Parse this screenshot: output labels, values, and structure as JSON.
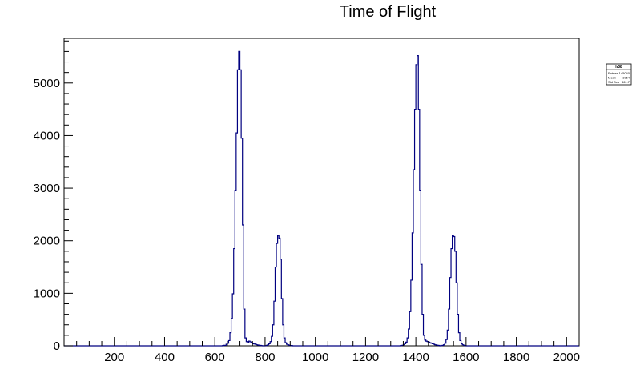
{
  "chart_data": {
    "type": "histogram",
    "title": "Time of Flight",
    "xlabel": "",
    "ylabel": "",
    "xlim": [
      0,
      2050
    ],
    "ylim": [
      0,
      5850
    ],
    "x_ticks": [
      200,
      400,
      600,
      800,
      1000,
      1200,
      1400,
      1600,
      1800,
      2000
    ],
    "y_ticks": [
      0,
      1000,
      2000,
      3000,
      4000,
      5000
    ],
    "line_color": "#000080",
    "grid": false,
    "stats_box": {
      "name": "h38",
      "entries_label": "Entries",
      "entries_value": "145040",
      "mean_label": "Mean",
      "mean_value": "1054",
      "stddev_label": "Std Dev",
      "stddev_value": "361.7"
    },
    "series": [
      {
        "bin_width": 5,
        "bins": [
          [
            630,
            4
          ],
          [
            635,
            10
          ],
          [
            640,
            10
          ],
          [
            645,
            30
          ],
          [
            650,
            50
          ],
          [
            655,
            100
          ],
          [
            660,
            250
          ],
          [
            665,
            520
          ],
          [
            670,
            990
          ],
          [
            675,
            1850
          ],
          [
            680,
            2950
          ],
          [
            685,
            4050
          ],
          [
            690,
            5250
          ],
          [
            695,
            5600
          ],
          [
            700,
            5250
          ],
          [
            705,
            3950
          ],
          [
            710,
            2300
          ],
          [
            715,
            700
          ],
          [
            720,
            150
          ],
          [
            725,
            80
          ],
          [
            730,
            70
          ],
          [
            735,
            90
          ],
          [
            740,
            75
          ],
          [
            745,
            60
          ],
          [
            750,
            40
          ],
          [
            755,
            35
          ],
          [
            760,
            30
          ],
          [
            765,
            20
          ],
          [
            770,
            15
          ],
          [
            775,
            10
          ],
          [
            780,
            8
          ],
          [
            785,
            5
          ],
          [
            800,
            5
          ],
          [
            805,
            10
          ],
          [
            810,
            20
          ],
          [
            815,
            40
          ],
          [
            820,
            80
          ],
          [
            825,
            180
          ],
          [
            830,
            400
          ],
          [
            835,
            850
          ],
          [
            840,
            1500
          ],
          [
            845,
            1950
          ],
          [
            850,
            2100
          ],
          [
            855,
            2050
          ],
          [
            860,
            1650
          ],
          [
            865,
            900
          ],
          [
            870,
            400
          ],
          [
            875,
            150
          ],
          [
            880,
            60
          ],
          [
            885,
            30
          ],
          [
            890,
            20
          ],
          [
            895,
            10
          ],
          [
            900,
            6
          ],
          [
            905,
            4
          ],
          [
            1340,
            5
          ],
          [
            1345,
            10
          ],
          [
            1350,
            20
          ],
          [
            1355,
            40
          ],
          [
            1360,
            70
          ],
          [
            1365,
            150
          ],
          [
            1370,
            320
          ],
          [
            1375,
            650
          ],
          [
            1380,
            1250
          ],
          [
            1385,
            2150
          ],
          [
            1390,
            3350
          ],
          [
            1395,
            4500
          ],
          [
            1400,
            5350
          ],
          [
            1405,
            5520
          ],
          [
            1410,
            4500
          ],
          [
            1415,
            2950
          ],
          [
            1420,
            1550
          ],
          [
            1425,
            600
          ],
          [
            1430,
            200
          ],
          [
            1435,
            110
          ],
          [
            1440,
            90
          ],
          [
            1445,
            80
          ],
          [
            1450,
            70
          ],
          [
            1455,
            60
          ],
          [
            1460,
            50
          ],
          [
            1465,
            40
          ],
          [
            1470,
            30
          ],
          [
            1475,
            20
          ],
          [
            1480,
            15
          ],
          [
            1485,
            10
          ],
          [
            1490,
            8
          ],
          [
            1500,
            5
          ],
          [
            1505,
            10
          ],
          [
            1510,
            20
          ],
          [
            1515,
            50
          ],
          [
            1520,
            120
          ],
          [
            1525,
            300
          ],
          [
            1530,
            700
          ],
          [
            1535,
            1300
          ],
          [
            1540,
            1850
          ],
          [
            1545,
            2100
          ],
          [
            1550,
            2080
          ],
          [
            1555,
            1800
          ],
          [
            1560,
            1200
          ],
          [
            1565,
            600
          ],
          [
            1570,
            250
          ],
          [
            1575,
            100
          ],
          [
            1580,
            40
          ],
          [
            1585,
            20
          ],
          [
            1590,
            10
          ],
          [
            1595,
            5
          ]
        ]
      }
    ]
  }
}
